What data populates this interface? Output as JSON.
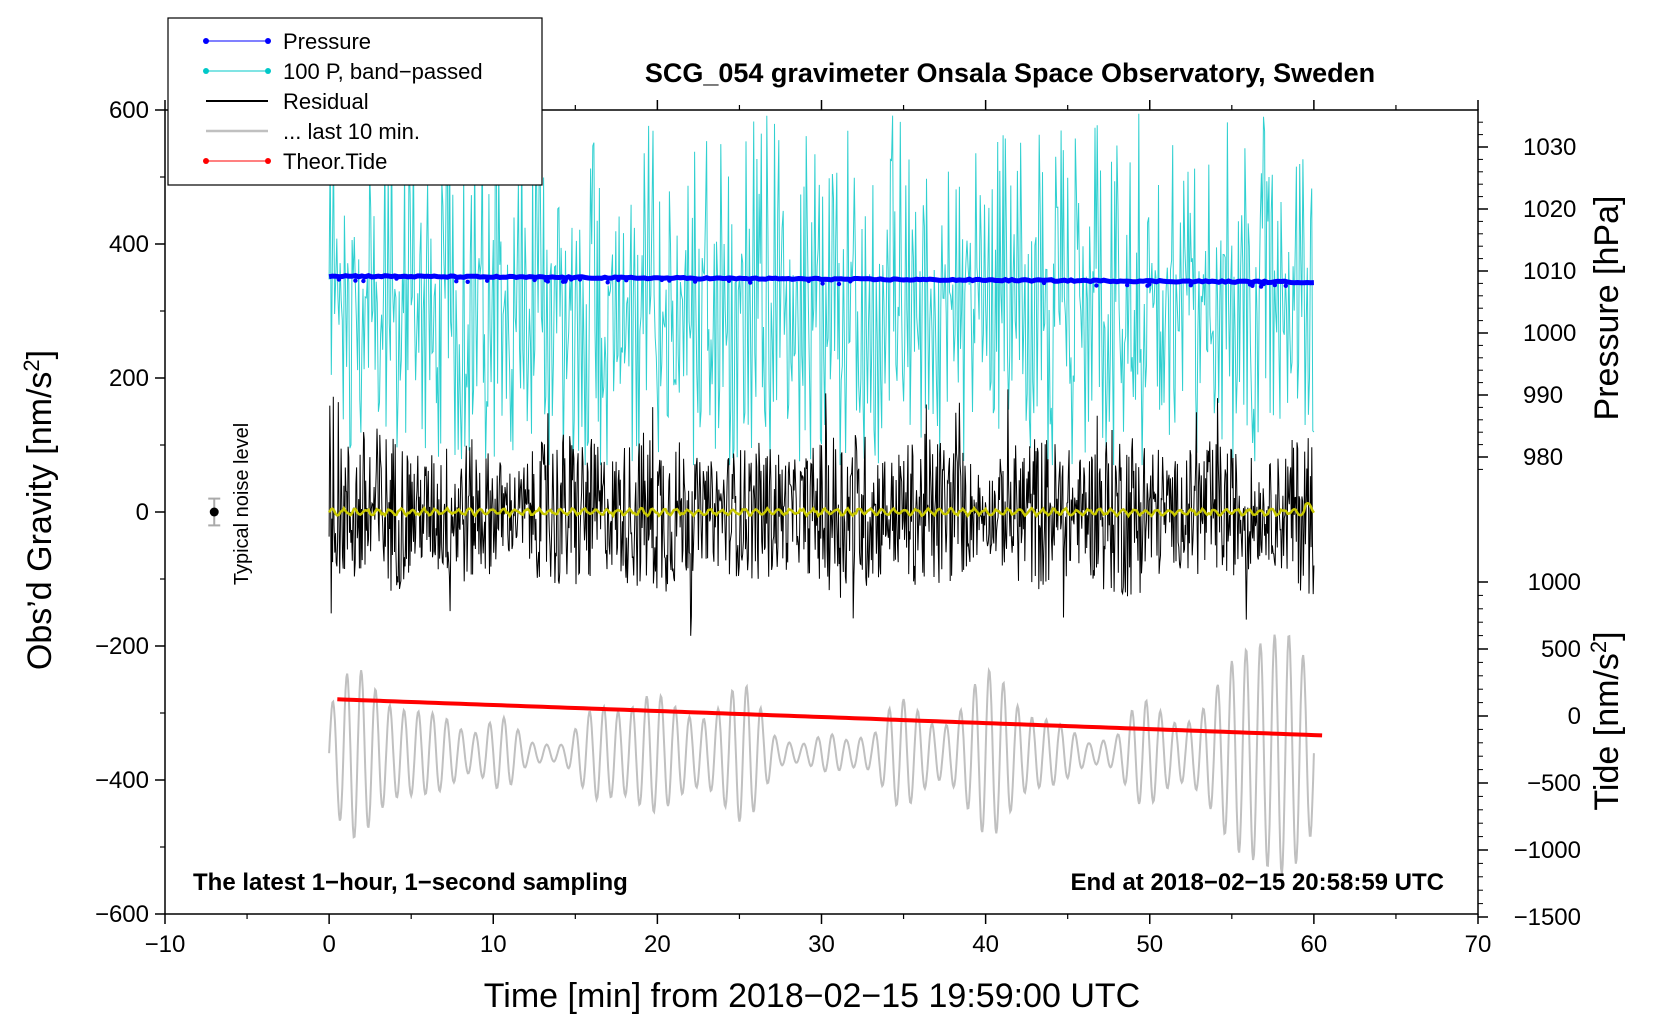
{
  "chart_data": {
    "type": "line",
    "title": "SCG_054 gravimeter Onsala Space Observatory, Sweden",
    "xlabel": "Time [min] from 2018−02−15 19:59:00 UTC",
    "ylabel_left": "Obs’d Gravity [nm/s",
    "ylabel_right_pressure": "Pressure [hPa]",
    "ylabel_right_tide": "Tide [nm/s",
    "superscript": "2",
    "ylabel_suffix": "]",
    "xlim": [
      -10,
      70
    ],
    "ylim_left": [
      -600,
      600
    ],
    "x_ticks": [
      "−10",
      "0",
      "10",
      "20",
      "30",
      "40",
      "50",
      "60",
      "70"
    ],
    "x_tick_values": [
      -10,
      0,
      10,
      20,
      30,
      40,
      50,
      60,
      70
    ],
    "y_ticks_left": [
      "600",
      "400",
      "200",
      "0",
      "−200",
      "−400",
      "−600"
    ],
    "y_tick_values_left": [
      600,
      400,
      200,
      0,
      -200,
      -400,
      -600
    ],
    "pressure_ticks": [
      "1030",
      "1020",
      "1010",
      "1000",
      "990",
      "980"
    ],
    "pressure_tick_values": [
      1030,
      1020,
      1010,
      1000,
      990,
      980
    ],
    "pressure_scale": {
      "hpa_at_gravity_zero": 1000,
      "gravity_per_hpa": -5
    },
    "tide_ticks": [
      "1000",
      "500",
      "0",
      "−500",
      "−1000",
      "−1500"
    ],
    "tide_tick_values": [
      1000,
      500,
      0,
      -500,
      -1000,
      -1500
    ],
    "tide_scale": {
      "tide_at_gravity_zero": 3000,
      "gravity_per_tide": 0.1
    },
    "legend": [
      {
        "label": "Pressure",
        "color": "#0000ff",
        "marker": true
      },
      {
        "label": "100 P, band−passed",
        "color": "#00c8c8",
        "marker": true
      },
      {
        "label": "Residual",
        "color": "#000000",
        "marker": false
      },
      {
        "label": "... last 10 min.",
        "color": "#c0c0c0",
        "marker": false
      },
      {
        "label": "Theor.Tide",
        "color": "#ff0000",
        "marker": true
      }
    ],
    "series": [
      {
        "name": "Pressure",
        "axis": "pressure",
        "color": "#0000ff",
        "x": [
          0,
          60
        ],
        "values": [
          1009.2,
          1008.2
        ]
      },
      {
        "name": "100 P, band−passed",
        "axis": "gravity",
        "color": "#30d0d0",
        "x_range": [
          0,
          60
        ],
        "mean": 300,
        "amplitude_range": [
          80,
          600
        ]
      },
      {
        "name": "Residual",
        "axis": "gravity",
        "color": "#000000",
        "x_range": [
          0,
          60
        ],
        "mean": 0,
        "amplitude_range": [
          -190,
          180
        ]
      },
      {
        "name": "Smoothed residual",
        "axis": "gravity",
        "color": "#c8c800",
        "x_range": [
          0,
          60
        ],
        "mean": 0,
        "amplitude_range": [
          -8,
          12
        ]
      },
      {
        "name": "... last 10 min.",
        "axis": "gravity",
        "color": "#c0c0c0",
        "x_range": [
          0,
          60
        ],
        "mean": -360,
        "amplitude_range": [
          -530,
          -180
        ]
      },
      {
        "name": "Theor.Tide",
        "axis": "tide",
        "color": "#ff0000",
        "x": [
          0.5,
          60.5
        ],
        "values": [
          125,
          -145
        ]
      }
    ],
    "noise_marker": {
      "x": -7,
      "y": 0,
      "error": 20,
      "label": "Typical noise level"
    },
    "annotation_left": "The latest 1−hour, 1−second sampling",
    "annotation_right": "End at 2018−02−15 20:58:59 UTC"
  }
}
